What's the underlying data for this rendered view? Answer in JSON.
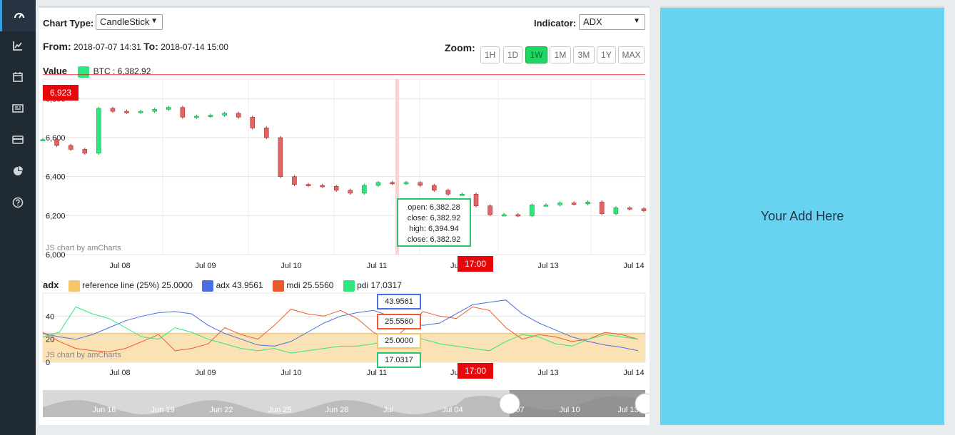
{
  "sidebar": {
    "items": [
      {
        "icon": "dashboard-icon",
        "active": true
      },
      {
        "icon": "line-chart-icon",
        "active": false
      },
      {
        "icon": "calendar-icon",
        "active": false
      },
      {
        "icon": "newspaper-icon",
        "active": false
      },
      {
        "icon": "credit-card-icon",
        "active": false
      },
      {
        "icon": "pie-chart-icon",
        "active": false
      },
      {
        "icon": "help-icon",
        "active": false
      }
    ]
  },
  "controls": {
    "chart_type_label": "Chart Type:",
    "chart_type_value": "CandleStick",
    "indicator_label": "Indicator:",
    "indicator_value": "ADX",
    "from_label": "From:",
    "from_value": "2018-07-07 14:31",
    "to_label": "To:",
    "to_value": "2018-07-14 15:00",
    "zoom_label": "Zoom:",
    "zoom_options": [
      "1H",
      "1D",
      "1W",
      "1M",
      "3M",
      "1Y",
      "MAX"
    ],
    "zoom_active": "1W"
  },
  "value_legend": {
    "title": "Value",
    "series_name": "BTC",
    "series_value": ": 6,382.92",
    "color": "#2ee77f"
  },
  "adx_legend": {
    "title": "adx",
    "items": [
      {
        "name": "reference line (25%)",
        "value": "25.0000",
        "color": "#f6c56b"
      },
      {
        "name": "adx",
        "value": "43.9561",
        "color": "#4a6fe3"
      },
      {
        "name": "mdi",
        "value": "25.5560",
        "color": "#ee5a2d"
      },
      {
        "name": "pdi",
        "value": "17.0317",
        "color": "#2ee77f"
      }
    ]
  },
  "price_tag": "6,923",
  "time_tag_top": "17:00",
  "time_tag_bottom": "17:00",
  "tooltip": {
    "open": "open: 6,382.28",
    "close1": "close: 6,382.92",
    "high": "high: 6,394.94",
    "close2": "close: 6,382.92"
  },
  "balloons": {
    "adx": "43.9561",
    "mdi": "25.5560",
    "ref": "25.0000",
    "pdi": "17.0317"
  },
  "credit": "JS chart by amCharts",
  "x_ticks": [
    "Jul 08",
    "Jul 09",
    "Jul 10",
    "Jul 11",
    "Jul",
    "Jul 13",
    "Jul 14"
  ],
  "scroll_ticks": [
    "Jun 16",
    "Jun 19",
    "Jun 22",
    "Jun 25",
    "Jun 28",
    "Jul",
    "Jul 04",
    "Jul 07",
    "Jul 10",
    "Jul 13"
  ],
  "ad_text": "Your Add Here",
  "chart_data": [
    {
      "type": "candlestick",
      "y_ticks": [
        "6,800",
        "6,600",
        "6,400",
        "6,200",
        "6,000"
      ],
      "ylim": [
        6000,
        6900
      ],
      "reference_price": 6923,
      "series": [
        {
          "name": "BTC",
          "values": [
            6590,
            6560,
            6540,
            6520,
            6750,
            6735,
            6730,
            6735,
            6745,
            6755,
            6705,
            6710,
            6715,
            6725,
            6705,
            6650,
            6600,
            6400,
            6360,
            6355,
            6350,
            6330,
            6315,
            6355,
            6370,
            6365,
            6370,
            6355,
            6330,
            6310,
            6310,
            6250,
            6205,
            6205,
            6200,
            6255,
            6255,
            6265,
            6260,
            6270,
            6210,
            6240,
            6235,
            6225
          ]
        }
      ]
    },
    {
      "type": "line",
      "y_ticks": [
        "40",
        "20",
        "0"
      ],
      "ylim": [
        0,
        60
      ],
      "series": [
        {
          "name": "adx",
          "values": [
            25,
            22,
            20,
            24,
            30,
            36,
            40,
            43,
            44,
            42,
            32,
            25,
            20,
            15,
            14,
            18,
            26,
            34,
            40,
            43,
            45,
            40,
            34,
            32,
            34,
            42,
            50,
            52,
            54,
            42,
            34,
            28,
            22,
            18,
            15,
            13,
            10
          ]
        },
        {
          "name": "mdi",
          "values": [
            26,
            18,
            12,
            10,
            9,
            12,
            18,
            24,
            10,
            12,
            16,
            30,
            24,
            20,
            32,
            46,
            42,
            40,
            45,
            38,
            26,
            18,
            30,
            44,
            40,
            38,
            48,
            45,
            30,
            20,
            24,
            22,
            18,
            20,
            26,
            24,
            20
          ]
        },
        {
          "name": "pdi",
          "values": [
            22,
            26,
            48,
            42,
            38,
            30,
            22,
            20,
            30,
            26,
            20,
            16,
            12,
            10,
            12,
            8,
            10,
            12,
            14,
            14,
            16,
            20,
            24,
            20,
            16,
            14,
            12,
            10,
            18,
            24,
            22,
            16,
            14,
            20,
            24,
            22,
            20
          ]
        },
        {
          "name": "reference line (25%)",
          "values": [
            25,
            25
          ]
        }
      ]
    }
  ]
}
